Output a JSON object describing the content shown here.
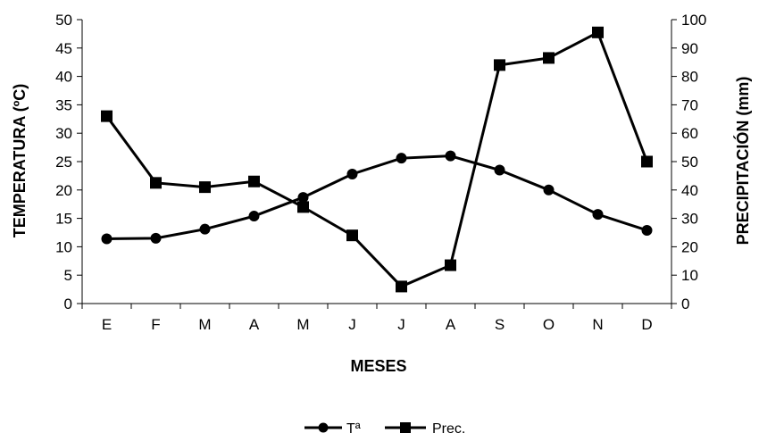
{
  "chart_data": {
    "type": "line",
    "categories": [
      "E",
      "F",
      "M",
      "A",
      "M",
      "J",
      "J",
      "A",
      "S",
      "O",
      "N",
      "D"
    ],
    "xlabel": "MESES",
    "ylabel_left": "TEMPERATURA (ºC)",
    "ylabel_right": "PRECIPITACIÓN (mm)",
    "ylim_left": [
      0,
      50
    ],
    "yticks_left": [
      0,
      5,
      10,
      15,
      20,
      25,
      30,
      35,
      40,
      45,
      50
    ],
    "ylim_right": [
      0,
      100
    ],
    "yticks_right": [
      0,
      10,
      20,
      30,
      40,
      50,
      60,
      70,
      80,
      90,
      100
    ],
    "grid": false,
    "legend_position": "bottom",
    "series": [
      {
        "name": "Tª",
        "axis": "left",
        "marker": "circle",
        "color": "#000000",
        "values": [
          11.4,
          11.5,
          13.1,
          15.4,
          18.7,
          22.8,
          25.6,
          26.0,
          23.5,
          20.0,
          15.7,
          12.9
        ]
      },
      {
        "name": "Prec.",
        "axis": "right",
        "marker": "square",
        "color": "#000000",
        "values": [
          66,
          42.5,
          41,
          43,
          34,
          24,
          6,
          13.5,
          84,
          86.5,
          95.5,
          50
        ]
      }
    ]
  }
}
